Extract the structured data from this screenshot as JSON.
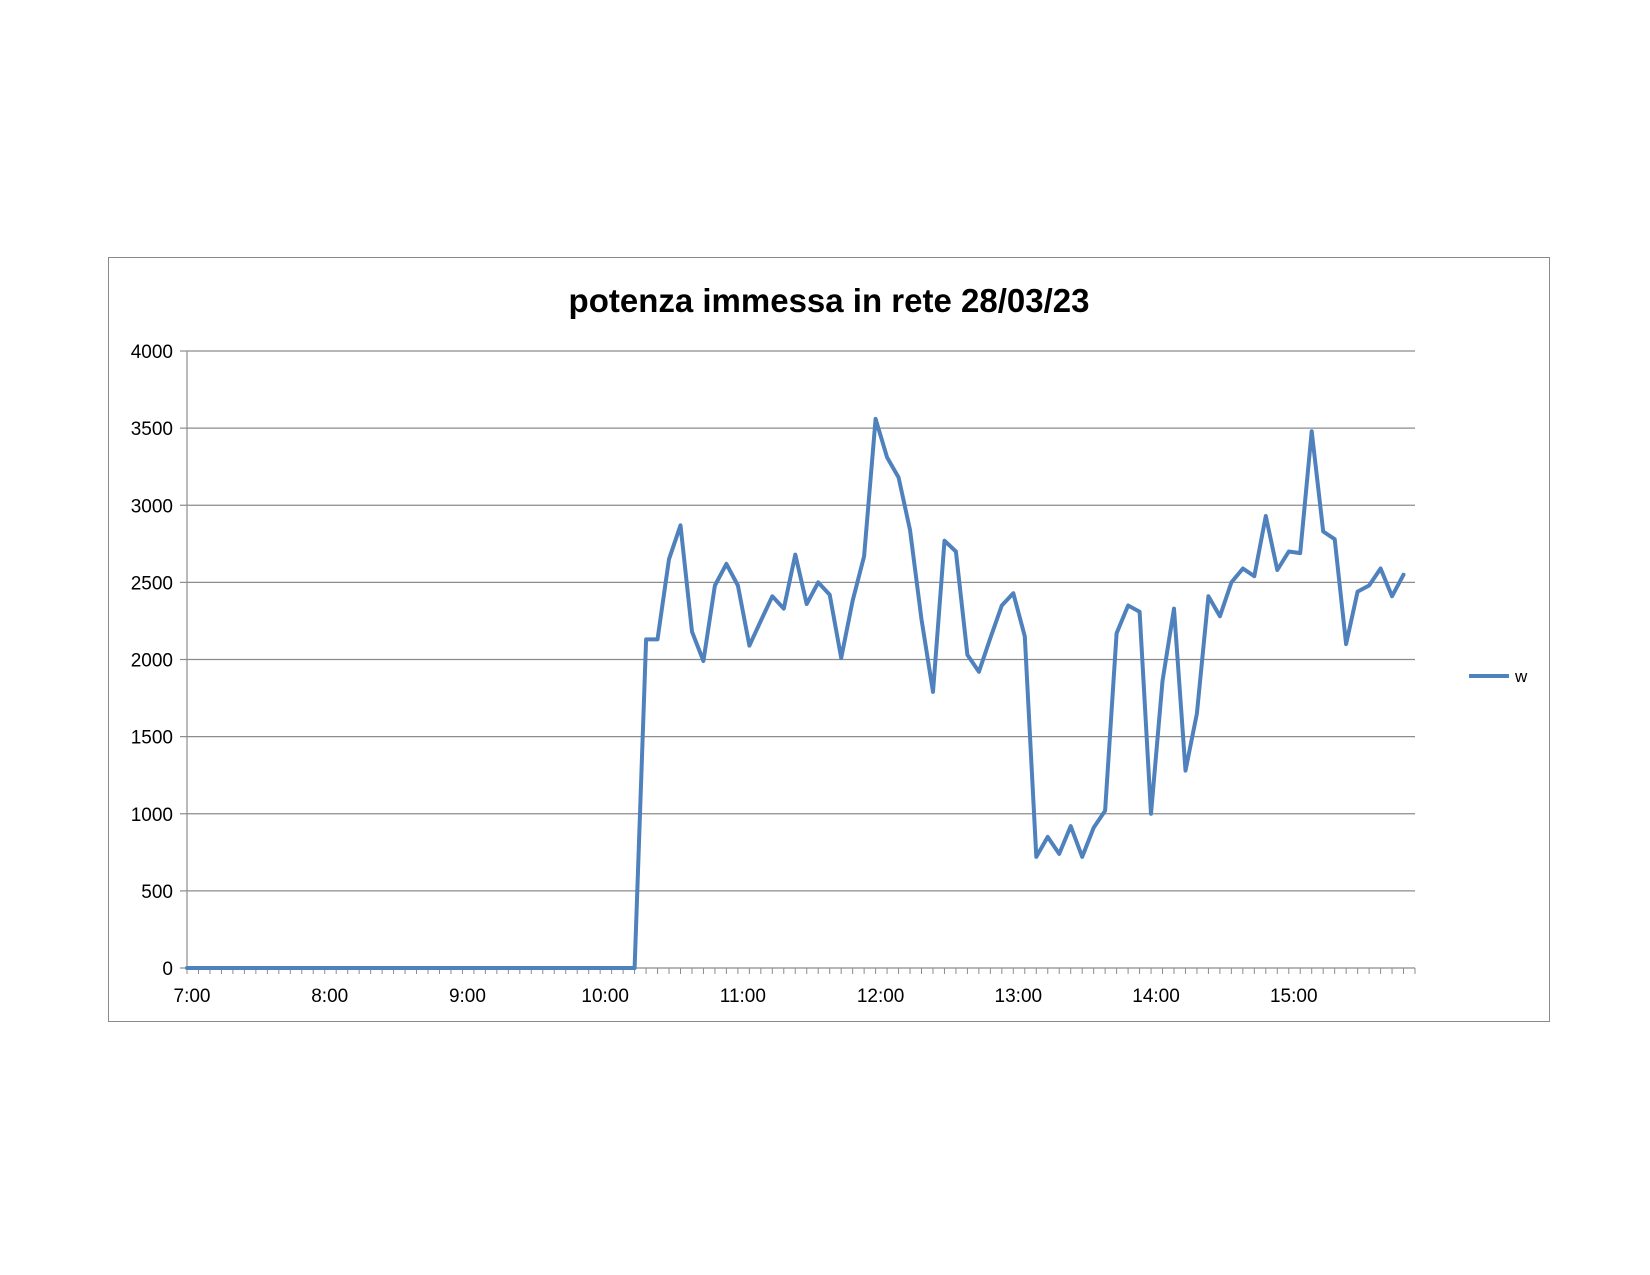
{
  "chart_data": {
    "type": "line",
    "title": "potenza immessa in rete 28/03/23",
    "xlabel": "",
    "ylabel": "",
    "ylim": [
      0,
      4000
    ],
    "y_ticks": [
      0,
      500,
      1000,
      1500,
      2000,
      2500,
      3000,
      3500,
      4000
    ],
    "x_tick_labels": [
      "7:00",
      "8:00",
      "9:00",
      "10:00",
      "11:00",
      "12:00",
      "13:00",
      "14:00",
      "15:00"
    ],
    "x_range_minutes": [
      420,
      955
    ],
    "sample_interval_minutes": 5,
    "grid": "horizontal",
    "legend_position": "right",
    "series": [
      {
        "name": "w",
        "color": "#4f81bd",
        "start": "7:00",
        "values": [
          0,
          0,
          0,
          0,
          0,
          0,
          0,
          0,
          0,
          0,
          0,
          0,
          0,
          0,
          0,
          0,
          0,
          0,
          0,
          0,
          0,
          0,
          0,
          0,
          0,
          0,
          0,
          0,
          0,
          0,
          0,
          0,
          0,
          0,
          0,
          0,
          0,
          0,
          0,
          0,
          2130,
          2130,
          2650,
          2870,
          2180,
          1990,
          2480,
          2620,
          2480,
          2090,
          2250,
          2410,
          2330,
          2680,
          2360,
          2500,
          2420,
          2010,
          2380,
          2670,
          3560,
          3310,
          3180,
          2840,
          2260,
          1790,
          2770,
          2700,
          2030,
          1920,
          2140,
          2350,
          2430,
          2150,
          720,
          850,
          740,
          920,
          720,
          910,
          1020,
          2170,
          2350,
          2310,
          1000,
          1860,
          2330,
          1280,
          1650,
          2410,
          2280,
          2500,
          2590,
          2540,
          2930,
          2580,
          2700,
          2690,
          3480,
          2830,
          2780,
          2100,
          2440,
          2480,
          2590,
          2410,
          2550
        ]
      }
    ]
  }
}
